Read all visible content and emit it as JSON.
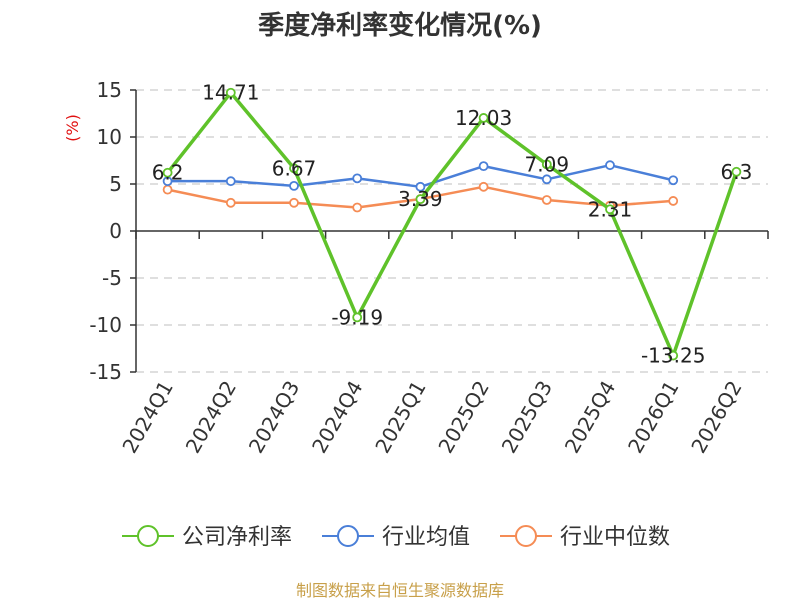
{
  "chart_data": {
    "type": "line",
    "title": "季度净利率变化情况(%)",
    "ylabel": "(%)",
    "xlabel": "",
    "categories": [
      "2024Q1",
      "2024Q2",
      "2024Q3",
      "2024Q4",
      "2025Q1",
      "2025Q2",
      "2025Q3",
      "2025Q4",
      "2026Q1",
      "2026Q2"
    ],
    "ylim": [
      -15,
      15
    ],
    "yticks": [
      15,
      10,
      5,
      0,
      -5,
      -10,
      -15
    ],
    "grid": true,
    "legend_position": "bottom",
    "series": [
      {
        "name": "公司净利率",
        "color": "#5fc22a",
        "values": [
          6.2,
          14.71,
          6.67,
          -9.19,
          3.39,
          12.03,
          7.09,
          2.31,
          -13.25,
          6.3
        ],
        "labels": [
          "6.2",
          "14.71",
          "6.67",
          "-9.19",
          "3.39",
          "12.03",
          "7.09",
          "2.31",
          "-13.25",
          "6.3"
        ]
      },
      {
        "name": "行业均值",
        "color": "#4a7fd8",
        "values": [
          5.3,
          5.3,
          4.8,
          5.6,
          4.7,
          6.9,
          5.5,
          7.0,
          5.4,
          null
        ]
      },
      {
        "name": "行业中位数",
        "color": "#f58c55",
        "values": [
          4.4,
          3.0,
          3.0,
          2.5,
          3.4,
          4.7,
          3.3,
          2.7,
          3.2,
          null
        ]
      }
    ]
  },
  "footer": "制图数据来自恒生聚源数据库"
}
